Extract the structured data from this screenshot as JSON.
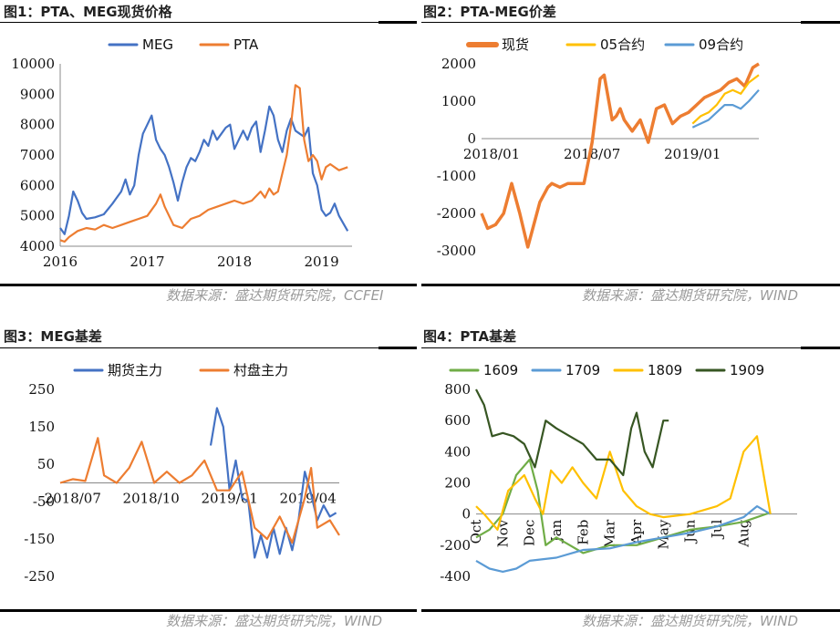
{
  "panels": {
    "fig1": {
      "title": "图1：PTA、MEG现货价格",
      "source": "数据来源：盛达期货研究院，CCFEI"
    },
    "fig2": {
      "title": "图2：PTA-MEG价差",
      "source": "数据来源：盛达期货研究院，WIND"
    },
    "fig3": {
      "title": "图3：MEG基差",
      "source": "数据来源：盛达期货研究院，WIND"
    },
    "fig4": {
      "title": "图4：PTA基差",
      "source": "数据来源：盛达期货研究院，WIND"
    }
  },
  "chart_data": [
    {
      "id": "fig1",
      "type": "line",
      "xlabel": "",
      "ylabel": "",
      "x_range": [
        2016.0,
        2019.35
      ],
      "x_ticks": [
        "2016",
        "2017",
        "2018",
        "2019"
      ],
      "x_tick_values": [
        2016,
        2017,
        2018,
        2019
      ],
      "ylim": [
        4000,
        10000
      ],
      "y_ticks": [
        4000,
        5000,
        6000,
        7000,
        8000,
        9000,
        10000
      ],
      "legend_position": "top",
      "series": [
        {
          "name": "MEG",
          "color": "#4472C4",
          "x": [
            2016.0,
            2016.05,
            2016.1,
            2016.15,
            2016.2,
            2016.25,
            2016.3,
            2016.4,
            2016.5,
            2016.6,
            2016.7,
            2016.75,
            2016.8,
            2016.85,
            2016.9,
            2016.95,
            2017.0,
            2017.05,
            2017.1,
            2017.15,
            2017.2,
            2017.25,
            2017.3,
            2017.35,
            2017.4,
            2017.45,
            2017.5,
            2017.55,
            2017.6,
            2017.65,
            2017.7,
            2017.75,
            2017.8,
            2017.85,
            2017.9,
            2017.95,
            2018.0,
            2018.05,
            2018.1,
            2018.15,
            2018.2,
            2018.25,
            2018.3,
            2018.35,
            2018.4,
            2018.45,
            2018.5,
            2018.55,
            2018.6,
            2018.65,
            2018.7,
            2018.75,
            2018.8,
            2018.85,
            2018.9,
            2018.95,
            2019.0,
            2019.05,
            2019.1,
            2019.15,
            2019.2,
            2019.3
          ],
          "values": [
            4600,
            4400,
            5000,
            5800,
            5500,
            5100,
            4900,
            4950,
            5050,
            5400,
            5800,
            6200,
            5700,
            6000,
            7000,
            7700,
            8000,
            8300,
            7500,
            7200,
            7000,
            6600,
            6100,
            5500,
            6100,
            6600,
            6900,
            6800,
            7100,
            7500,
            7300,
            7800,
            7500,
            7700,
            7900,
            8000,
            7200,
            7500,
            7800,
            7500,
            7900,
            8100,
            7100,
            7800,
            8600,
            8300,
            7500,
            7100,
            7800,
            8200,
            7800,
            7700,
            7600,
            7900,
            6400,
            6000,
            5200,
            5000,
            5100,
            5400,
            5000,
            4500
          ]
        },
        {
          "name": "PTA",
          "color": "#ED7D31",
          "x": [
            2016.0,
            2016.05,
            2016.1,
            2016.2,
            2016.3,
            2016.4,
            2016.5,
            2016.6,
            2016.7,
            2016.8,
            2016.9,
            2017.0,
            2017.1,
            2017.15,
            2017.2,
            2017.25,
            2017.3,
            2017.4,
            2017.5,
            2017.6,
            2017.7,
            2017.8,
            2017.9,
            2018.0,
            2018.1,
            2018.2,
            2018.3,
            2018.35,
            2018.4,
            2018.45,
            2018.5,
            2018.55,
            2018.6,
            2018.65,
            2018.7,
            2018.75,
            2018.8,
            2018.85,
            2018.9,
            2018.95,
            2019.0,
            2019.05,
            2019.1,
            2019.2,
            2019.3
          ],
          "values": [
            4200,
            4150,
            4300,
            4500,
            4600,
            4550,
            4700,
            4600,
            4700,
            4800,
            4900,
            5000,
            5400,
            5700,
            5300,
            5000,
            4700,
            4600,
            4900,
            5000,
            5200,
            5300,
            5400,
            5500,
            5400,
            5500,
            5800,
            5600,
            5900,
            5700,
            5800,
            6400,
            7000,
            8000,
            9300,
            9200,
            7500,
            6800,
            7000,
            6800,
            6200,
            6600,
            6700,
            6500,
            6600
          ]
        }
      ]
    },
    {
      "id": "fig2",
      "type": "line",
      "xlabel": "",
      "ylabel": "",
      "x_range": [
        2017.95,
        2019.33
      ],
      "x_ticks": [
        "2018/01",
        "2018/07",
        "2019/01"
      ],
      "x_tick_values": [
        2018.0,
        2018.5,
        2019.0
      ],
      "ylim": [
        -3000,
        2000
      ],
      "y_ticks": [
        -3000,
        -2000,
        -1000,
        0,
        1000,
        2000
      ],
      "legend_position": "top",
      "series": [
        {
          "name": "现货",
          "color": "#ED7D31",
          "x": [
            2017.95,
            2017.98,
            2018.02,
            2018.06,
            2018.1,
            2018.14,
            2018.18,
            2018.2,
            2018.24,
            2018.28,
            2018.3,
            2018.34,
            2018.38,
            2018.42,
            2018.46,
            2018.5,
            2018.54,
            2018.56,
            2018.6,
            2018.62,
            2018.64,
            2018.66,
            2018.7,
            2018.74,
            2018.78,
            2018.82,
            2018.86,
            2018.9,
            2018.94,
            2018.98,
            2019.02,
            2019.06,
            2019.1,
            2019.14,
            2019.18,
            2019.22,
            2019.26,
            2019.3,
            2019.33
          ],
          "values": [
            -2000,
            -2400,
            -2300,
            -2000,
            -1200,
            -2000,
            -2900,
            -2500,
            -1700,
            -1300,
            -1200,
            -1300,
            -1200,
            -1200,
            -1200,
            -100,
            1600,
            1700,
            500,
            600,
            800,
            500,
            200,
            500,
            -100,
            800,
            900,
            400,
            600,
            700,
            900,
            1100,
            1200,
            1300,
            1500,
            1600,
            1400,
            1900,
            2000
          ]
        },
        {
          "name": "05合约",
          "color": "#FFC000",
          "x": [
            2019.0,
            2019.04,
            2019.08,
            2019.12,
            2019.16,
            2019.2,
            2019.24,
            2019.28,
            2019.33
          ],
          "values": [
            400,
            600,
            700,
            900,
            1200,
            1300,
            1200,
            1500,
            1700
          ]
        },
        {
          "name": "09合约",
          "color": "#5B9BD5",
          "x": [
            2019.0,
            2019.04,
            2019.08,
            2019.12,
            2019.16,
            2019.2,
            2019.24,
            2019.28,
            2019.33
          ],
          "values": [
            300,
            400,
            500,
            700,
            900,
            900,
            800,
            1000,
            1300
          ]
        }
      ]
    },
    {
      "id": "fig3",
      "type": "line",
      "xlabel": "",
      "ylabel": "",
      "x_range": [
        2018.46,
        2019.35
      ],
      "x_ticks": [
        "2018/07",
        "2018/10",
        "2019/01",
        "2019/04"
      ],
      "x_tick_values": [
        2018.5,
        2018.75,
        2019.0,
        2019.25
      ],
      "ylim": [
        -250,
        250
      ],
      "y_ticks": [
        -250,
        -150,
        -50,
        50,
        150,
        250
      ],
      "legend_position": "top",
      "series": [
        {
          "name": "期货主力",
          "color": "#4472C4",
          "x": [
            2018.94,
            2018.96,
            2018.98,
            2019.0,
            2019.02,
            2019.04,
            2019.06,
            2019.08,
            2019.1,
            2019.12,
            2019.14,
            2019.16,
            2019.18,
            2019.2,
            2019.22,
            2019.24,
            2019.26,
            2019.28,
            2019.3,
            2019.32,
            2019.34
          ],
          "values": [
            100,
            200,
            150,
            -20,
            60,
            -40,
            -50,
            -200,
            -140,
            -200,
            -120,
            -190,
            -120,
            -180,
            -100,
            30,
            -30,
            -100,
            -60,
            -90,
            -80
          ]
        },
        {
          "name": "村盘主力",
          "color": "#ED7D31",
          "x": [
            2018.46,
            2018.5,
            2018.54,
            2018.58,
            2018.6,
            2018.64,
            2018.68,
            2018.72,
            2018.76,
            2018.8,
            2018.84,
            2018.88,
            2018.92,
            2018.96,
            2019.0,
            2019.04,
            2019.08,
            2019.12,
            2019.16,
            2019.2,
            2019.24,
            2019.26,
            2019.28,
            2019.32,
            2019.35
          ],
          "values": [
            0,
            10,
            5,
            120,
            20,
            0,
            40,
            110,
            0,
            30,
            0,
            20,
            60,
            -20,
            -20,
            30,
            -120,
            -150,
            -90,
            -160,
            -40,
            40,
            -120,
            -100,
            -140
          ]
        }
      ]
    },
    {
      "id": "fig4",
      "type": "line",
      "xlabel": "",
      "ylabel": "",
      "x_range": [
        0,
        12
      ],
      "x_ticks": [
        "Oct",
        "Nov",
        "Dec",
        "Jan",
        "Feb",
        "Mar",
        "Apr",
        "May",
        "Jun",
        "Jul",
        "Aug"
      ],
      "x_tick_values": [
        0,
        1,
        2,
        3,
        4,
        5,
        6,
        7,
        8,
        9,
        10
      ],
      "ylim": [
        -400,
        800
      ],
      "y_ticks": [
        -400,
        -200,
        0,
        200,
        400,
        600,
        800
      ],
      "legend_position": "top",
      "series": [
        {
          "name": "1609",
          "color": "#70AD47",
          "x": [
            0,
            0.5,
            1,
            1.5,
            2,
            2.3,
            2.6,
            3,
            3.5,
            4,
            5,
            6,
            7,
            8,
            9,
            10,
            11
          ],
          "values": [
            -150,
            -100,
            0,
            250,
            350,
            150,
            -200,
            -150,
            -200,
            -250,
            -200,
            -200,
            -150,
            -100,
            -80,
            -50,
            10
          ]
        },
        {
          "name": "1709",
          "color": "#5B9BD5",
          "x": [
            0,
            0.5,
            1,
            1.5,
            2,
            3,
            4,
            5,
            6,
            7,
            8,
            9,
            10,
            10.5,
            11
          ],
          "values": [
            -300,
            -350,
            -370,
            -350,
            -300,
            -280,
            -230,
            -220,
            -180,
            -150,
            -120,
            -80,
            -20,
            50,
            0
          ]
        },
        {
          "name": "1809",
          "color": "#FFC000",
          "x": [
            0,
            0.3,
            0.8,
            1.2,
            1.8,
            2.2,
            2.5,
            2.8,
            3.2,
            3.6,
            4,
            4.5,
            5,
            5.5,
            6,
            6.5,
            7,
            8,
            9,
            9.5,
            10,
            10.5,
            11
          ],
          "values": [
            50,
            0,
            -100,
            150,
            250,
            100,
            0,
            280,
            200,
            300,
            200,
            100,
            400,
            150,
            50,
            0,
            -20,
            0,
            50,
            100,
            400,
            500,
            0
          ]
        },
        {
          "name": "1909",
          "color": "#375623",
          "x": [
            0,
            0.3,
            0.6,
            1,
            1.4,
            1.8,
            2.2,
            2.6,
            3,
            3.5,
            4,
            4.5,
            5,
            5.5,
            5.8,
            6,
            6.3,
            6.6,
            7,
            7.2
          ],
          "values": [
            800,
            700,
            500,
            520,
            500,
            450,
            300,
            600,
            550,
            500,
            450,
            350,
            350,
            250,
            550,
            650,
            400,
            300,
            600,
            600
          ]
        }
      ]
    }
  ]
}
